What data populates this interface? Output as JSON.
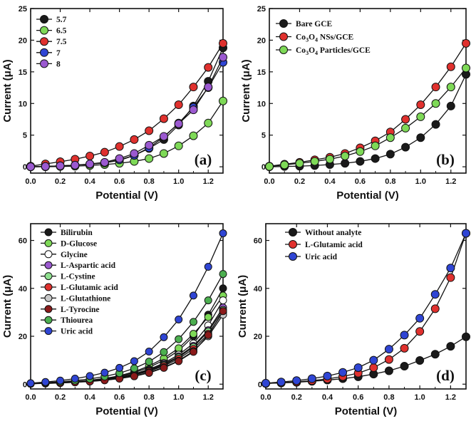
{
  "chart_data": [
    {
      "type": "line",
      "title": "",
      "panel_label": "(a)",
      "xlabel": "Potential (V)",
      "ylabel": "Current (μA)",
      "xlim": [
        0.0,
        1.3
      ],
      "ylim": [
        -1,
        25
      ],
      "xticks": [
        "0.0",
        "0.2",
        "0.4",
        "0.6",
        "0.8",
        "1.0",
        "1.2"
      ],
      "yticks": [
        "0",
        "5",
        "10",
        "15",
        "20",
        "25"
      ],
      "legend_position": "top-left",
      "x": [
        0.0,
        0.1,
        0.2,
        0.3,
        0.4,
        0.5,
        0.6,
        0.7,
        0.8,
        0.9,
        1.0,
        1.1,
        1.2,
        1.3
      ],
      "series": [
        {
          "name": "5.7",
          "color": "#1a1a1a",
          "values": [
            0.0,
            0.05,
            0.12,
            0.25,
            0.4,
            0.65,
            1.0,
            1.8,
            2.9,
            4.3,
            6.6,
            9.6,
            13.5,
            18.8
          ]
        },
        {
          "name": "6.5",
          "color": "#7ed957",
          "values": [
            0.0,
            0.0,
            0.05,
            0.1,
            0.2,
            0.35,
            0.55,
            0.85,
            1.3,
            2.1,
            3.3,
            4.9,
            6.9,
            10.4
          ]
        },
        {
          "name": "7.5",
          "color": "#e0312e",
          "values": [
            0.1,
            0.45,
            0.8,
            1.2,
            1.7,
            2.3,
            3.2,
            4.3,
            5.7,
            7.6,
            9.8,
            12.6,
            15.7,
            19.5
          ]
        },
        {
          "name": "7",
          "color": "#2f45d4",
          "values": [
            0.0,
            0.05,
            0.15,
            0.25,
            0.4,
            0.6,
            1.1,
            1.8,
            3.0,
            4.7,
            6.9,
            9.4,
            12.5,
            16.5
          ]
        },
        {
          "name": "8",
          "color": "#9b59d0",
          "values": [
            0.0,
            0.05,
            0.15,
            0.25,
            0.45,
            0.7,
            1.3,
            2.1,
            3.4,
            4.8,
            6.8,
            9.0,
            12.6,
            17.3
          ]
        }
      ]
    },
    {
      "type": "line",
      "title": "",
      "panel_label": "(b)",
      "xlabel": "Potential (V)",
      "ylabel": "Current (μA)",
      "xlim": [
        0.0,
        1.3
      ],
      "ylim": [
        -1,
        25
      ],
      "xticks": [
        "0.0",
        "0.2",
        "0.4",
        "0.6",
        "0.8",
        "1.0",
        "1.2"
      ],
      "yticks": [
        "0",
        "5",
        "10",
        "15",
        "20",
        "25"
      ],
      "legend_position": "top-left",
      "x": [
        0.0,
        0.1,
        0.2,
        0.3,
        0.4,
        0.5,
        0.6,
        0.7,
        0.8,
        0.9,
        1.0,
        1.1,
        1.2,
        1.3
      ],
      "series": [
        {
          "name": "Bare GCE",
          "color": "#1a1a1a",
          "values": [
            0.0,
            0.05,
            0.1,
            0.2,
            0.35,
            0.55,
            0.85,
            1.3,
            2.0,
            3.1,
            4.6,
            6.7,
            9.6,
            14.6
          ]
        },
        {
          "name": "Co3O4 NSs/GCE",
          "name_parts": [
            "Co",
            "3",
            "O",
            "4",
            " NSs/GCE"
          ],
          "color": "#e0312e",
          "values": [
            0.1,
            0.4,
            0.7,
            1.1,
            1.5,
            2.1,
            3.0,
            4.1,
            5.5,
            7.5,
            9.8,
            12.6,
            15.8,
            19.5
          ]
        },
        {
          "name": "Co3O4 Particles/GCE",
          "name_parts": [
            "Co",
            "3",
            "O",
            "4",
            " Particles/GCE"
          ],
          "color": "#7ed957",
          "values": [
            0.05,
            0.3,
            0.55,
            0.85,
            1.2,
            1.7,
            2.4,
            3.3,
            4.6,
            6.1,
            7.9,
            10.0,
            12.6,
            15.6
          ]
        }
      ]
    },
    {
      "type": "line",
      "title": "",
      "panel_label": "(c)",
      "xlabel": "Potential (V)",
      "ylabel": "Current (μA)",
      "xlim": [
        0.0,
        1.3
      ],
      "ylim": [
        -2,
        67
      ],
      "xticks": [
        "0.0",
        "0.2",
        "0.4",
        "0.6",
        "0.8",
        "1.0",
        "1.2"
      ],
      "yticks": [
        "0",
        "20",
        "40",
        "60"
      ],
      "legend_position": "top-left",
      "x": [
        0.0,
        0.1,
        0.2,
        0.3,
        0.4,
        0.5,
        0.6,
        0.7,
        0.8,
        0.9,
        1.0,
        1.1,
        1.2,
        1.3
      ],
      "series": [
        {
          "name": "Bilirubin",
          "color": "#1a1a1a",
          "values": [
            0.2,
            0.4,
            0.7,
            1.0,
            1.5,
            2.2,
            3.2,
            4.8,
            7.0,
            10.0,
            14.0,
            20.0,
            29.0,
            40.0
          ]
        },
        {
          "name": "D-Glucose",
          "color": "#7ed957",
          "values": [
            0.2,
            0.4,
            0.7,
            1.1,
            1.6,
            2.4,
            3.5,
            5.2,
            7.6,
            10.8,
            15.0,
            21.0,
            28.0,
            37.0
          ]
        },
        {
          "name": "Glycine",
          "color": "#ffffff",
          "values": [
            0.2,
            0.4,
            0.6,
            0.9,
            1.4,
            2.0,
            2.9,
            4.3,
            6.2,
            8.8,
            12.3,
            17.0,
            24.5,
            35.0
          ]
        },
        {
          "name": "L-Aspartic acid",
          "color": "#9b59d0",
          "values": [
            0.2,
            0.4,
            0.6,
            0.9,
            1.4,
            2.0,
            2.8,
            4.1,
            5.9,
            8.4,
            11.6,
            16.0,
            22.5,
            32.0
          ]
        },
        {
          "name": "L-Cystine",
          "color": "#8fe08f",
          "values": [
            0.2,
            0.4,
            0.6,
            0.9,
            1.3,
            1.9,
            2.7,
            3.9,
            5.6,
            8.0,
            11.2,
            15.5,
            22.0,
            31.0
          ]
        },
        {
          "name": "L-Glutamic acid",
          "color": "#e0312e",
          "values": [
            0.2,
            0.4,
            0.6,
            0.9,
            1.3,
            1.9,
            2.6,
            3.8,
            5.4,
            7.6,
            10.6,
            14.7,
            21.0,
            30.0
          ]
        },
        {
          "name": "L-Glutathione",
          "color": "#c8c8c8",
          "values": [
            0.2,
            0.3,
            0.5,
            0.8,
            1.2,
            1.7,
            2.4,
            3.4,
            4.9,
            7.0,
            9.8,
            13.8,
            20.0,
            29.0
          ]
        },
        {
          "name": "L-Tyrocine",
          "color": "#8b1a1a",
          "values": [
            0.2,
            0.3,
            0.5,
            0.8,
            1.1,
            1.6,
            2.3,
            3.3,
            4.7,
            6.8,
            9.6,
            13.5,
            20.5,
            30.5
          ]
        },
        {
          "name": "Thiourea",
          "color": "#4caf50",
          "values": [
            0.3,
            0.6,
            1.0,
            1.5,
            2.2,
            3.2,
            4.6,
            6.6,
            9.4,
            13.4,
            18.8,
            26.0,
            35.0,
            46.0
          ]
        },
        {
          "name": "Uric acid",
          "color": "#2f45d4",
          "values": [
            0.4,
            0.9,
            1.5,
            2.3,
            3.4,
            4.8,
            6.8,
            9.6,
            13.6,
            19.6,
            27.0,
            37.0,
            49.0,
            63.0
          ]
        }
      ]
    },
    {
      "type": "line",
      "title": "",
      "panel_label": "(d)",
      "xlabel": "Potential (V)",
      "ylabel": "Current (μA)",
      "xlim": [
        0.0,
        1.3
      ],
      "ylim": [
        -2,
        67
      ],
      "xticks": [
        "0.0",
        "0.2",
        "0.4",
        "0.6",
        "0.8",
        "1.0",
        "1.2"
      ],
      "yticks": [
        "0",
        "20",
        "40",
        "60"
      ],
      "legend_position": "top-left",
      "x": [
        0.0,
        0.1,
        0.2,
        0.3,
        0.4,
        0.5,
        0.6,
        0.7,
        0.8,
        0.9,
        1.0,
        1.1,
        1.2,
        1.3
      ],
      "series": [
        {
          "name": "Without analyte",
          "color": "#1a1a1a",
          "values": [
            0.3,
            0.5,
            0.8,
            1.2,
            1.7,
            2.3,
            3.1,
            4.2,
            5.6,
            7.5,
            9.9,
            12.5,
            15.8,
            19.8
          ]
        },
        {
          "name": "L-Glutamic acid",
          "color": "#e0312e",
          "values": [
            0.3,
            0.6,
            1.0,
            1.5,
            2.2,
            3.2,
            4.6,
            6.9,
            10.3,
            15.0,
            22.0,
            31.5,
            44.5,
            63.0
          ]
        },
        {
          "name": "Uric acid",
          "color": "#2f45d4",
          "values": [
            0.4,
            0.9,
            1.5,
            2.3,
            3.4,
            4.9,
            6.9,
            10.0,
            14.6,
            20.5,
            27.5,
            37.5,
            48.5,
            63.0
          ]
        }
      ]
    }
  ]
}
